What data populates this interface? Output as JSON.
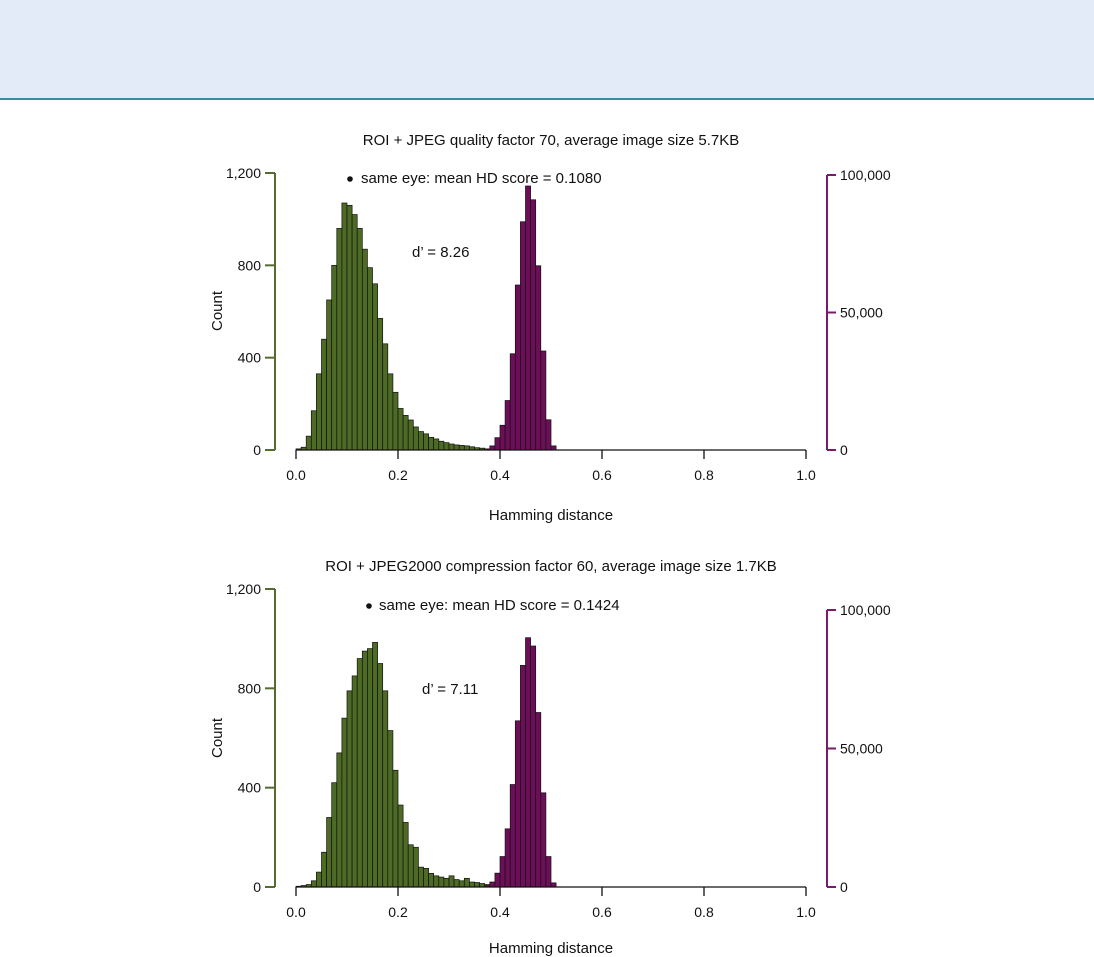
{
  "chart_data": [
    {
      "type": "bar",
      "title": "ROI + JPEG quality factor 70, average image size 5.7KB",
      "xlabel": "Hamming distance",
      "ylabel": "Count",
      "xlim": [
        0,
        1
      ],
      "xticks": [
        0,
        0.2,
        0.4,
        0.6,
        0.8,
        1.0
      ],
      "xtick_labels": [
        "0.0",
        "0.2",
        "0.4",
        "0.6",
        "0.8",
        "1.0"
      ],
      "ylim_left": [
        0,
        1200
      ],
      "yticks_left": [
        0,
        400,
        800,
        1200
      ],
      "ytick_labels_left": [
        "0",
        "400",
        "800",
        "1,200"
      ],
      "ylim_right": [
        0,
        100000
      ],
      "yticks_right": [
        0,
        50000,
        100000
      ],
      "ytick_labels_right": [
        "0",
        "50,000",
        "100,000"
      ],
      "bin_width": 0.01,
      "grid": false,
      "legend_text": "same eye:  mean HD score =  0.1080",
      "annotation": "d’ =  8.26",
      "colors": {
        "same_eye": "#4e6b26",
        "different_eye": "#6c0f58",
        "left_axis": "#556b2f",
        "right_axis": "#7a1a6a"
      },
      "series": [
        {
          "axis": "left",
          "bin_start": [
            0.0,
            0.01,
            0.02,
            0.03,
            0.04,
            0.05,
            0.06,
            0.07,
            0.08,
            0.09,
            0.1,
            0.11,
            0.12,
            0.13,
            0.14,
            0.15,
            0.16,
            0.17,
            0.18,
            0.19,
            0.2,
            0.21,
            0.22,
            0.23,
            0.24,
            0.25,
            0.26,
            0.27,
            0.28,
            0.29,
            0.3,
            0.31,
            0.32,
            0.33,
            0.34,
            0.35,
            0.36,
            0.37,
            0.38,
            0.39
          ],
          "values": [
            5,
            12,
            60,
            170,
            330,
            480,
            650,
            800,
            960,
            1070,
            1060,
            1020,
            960,
            870,
            790,
            720,
            570,
            460,
            330,
            250,
            180,
            150,
            130,
            100,
            80,
            70,
            55,
            48,
            38,
            32,
            26,
            22,
            20,
            18,
            14,
            10,
            8,
            5,
            3,
            1
          ]
        },
        {
          "axis": "right",
          "bin_start": [
            0.37,
            0.38,
            0.39,
            0.4,
            0.41,
            0.42,
            0.43,
            0.44,
            0.45,
            0.46,
            0.47,
            0.48,
            0.49,
            0.5
          ],
          "values": [
            400,
            1500,
            4500,
            9000,
            18000,
            35000,
            60000,
            83000,
            96000,
            91000,
            67000,
            36000,
            11000,
            1500
          ]
        }
      ]
    },
    {
      "type": "bar",
      "title": "ROI + JPEG2000 compression factor 60, average image size 1.7KB",
      "xlabel": "Hamming distance",
      "ylabel": "Count",
      "xlim": [
        0,
        1
      ],
      "xticks": [
        0,
        0.2,
        0.4,
        0.6,
        0.8,
        1.0
      ],
      "xtick_labels": [
        "0.0",
        "0.2",
        "0.4",
        "0.6",
        "0.8",
        "1.0"
      ],
      "ylim_left": [
        0,
        1200
      ],
      "yticks_left": [
        0,
        400,
        800,
        1200
      ],
      "ytick_labels_left": [
        "0",
        "400",
        "800",
        "1,200"
      ],
      "ylim_right": [
        0,
        100000
      ],
      "yticks_right": [
        0,
        50000,
        100000
      ],
      "ytick_labels_right": [
        "0",
        "50,000",
        "100,000"
      ],
      "bin_width": 0.01,
      "grid": false,
      "legend_text": "same eye:  mean HD score = 0.1424",
      "annotation": "d’ =  7.11",
      "colors": {
        "same_eye": "#4e6b26",
        "different_eye": "#6c0f58",
        "left_axis": "#556b2f",
        "right_axis": "#7a1a6a"
      },
      "series": [
        {
          "axis": "left",
          "bin_start": [
            0.0,
            0.01,
            0.02,
            0.03,
            0.04,
            0.05,
            0.06,
            0.07,
            0.08,
            0.09,
            0.1,
            0.11,
            0.12,
            0.13,
            0.14,
            0.15,
            0.16,
            0.17,
            0.18,
            0.19,
            0.2,
            0.21,
            0.22,
            0.23,
            0.24,
            0.25,
            0.26,
            0.27,
            0.28,
            0.29,
            0.3,
            0.31,
            0.32,
            0.33,
            0.34,
            0.35,
            0.36,
            0.37,
            0.38,
            0.39
          ],
          "values": [
            3,
            6,
            10,
            25,
            60,
            140,
            280,
            420,
            540,
            680,
            790,
            850,
            920,
            950,
            960,
            985,
            900,
            790,
            630,
            470,
            330,
            260,
            170,
            160,
            80,
            75,
            55,
            45,
            40,
            35,
            45,
            30,
            25,
            35,
            20,
            18,
            14,
            10,
            6,
            3
          ]
        },
        {
          "axis": "right",
          "bin_start": [
            0.37,
            0.38,
            0.39,
            0.4,
            0.41,
            0.42,
            0.43,
            0.44,
            0.45,
            0.46,
            0.47,
            0.48,
            0.49,
            0.5
          ],
          "values": [
            500,
            1800,
            5000,
            11000,
            21000,
            37000,
            60000,
            80000,
            90000,
            87000,
            63000,
            34000,
            11000,
            1500
          ]
        }
      ]
    }
  ]
}
